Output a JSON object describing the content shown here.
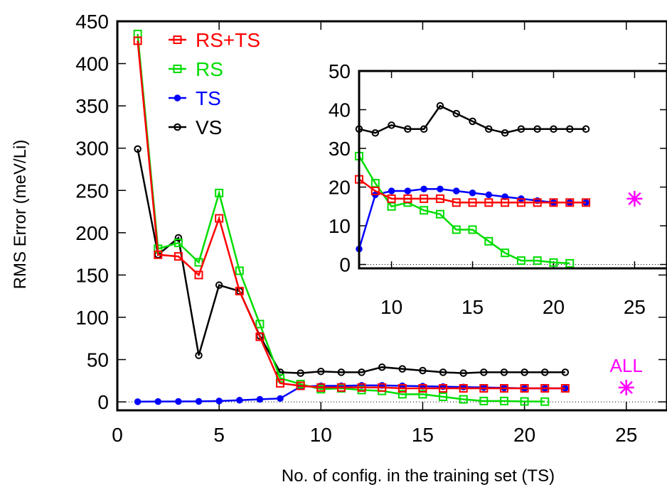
{
  "chart_data": [
    {
      "type": "line",
      "xlabel": "No. of config. in the training set (TS)",
      "ylabel": "RMS Error (meV/Li)",
      "xlim": [
        0,
        27
      ],
      "ylim": [
        -10,
        450
      ],
      "xticks": [
        0,
        5,
        10,
        15,
        20,
        25
      ],
      "yticks": [
        0,
        50,
        100,
        150,
        200,
        250,
        300,
        350,
        400,
        450
      ],
      "legend_position": "top-left",
      "series": [
        {
          "name": "RS+TS",
          "color": "#ff0000",
          "marker": "square",
          "x": [
            1,
            2,
            3,
            4,
            5,
            6,
            7,
            8,
            9,
            10,
            11,
            12,
            13,
            14,
            15,
            16,
            17,
            18,
            19,
            20,
            21,
            22
          ],
          "y": [
            427,
            174,
            172,
            150,
            217,
            131,
            77,
            22,
            19,
            17,
            17,
            17,
            17,
            16,
            16,
            16,
            16,
            16,
            16,
            16,
            16,
            16
          ]
        },
        {
          "name": "RS",
          "color": "#00dd00",
          "marker": "square",
          "x": [
            1,
            2,
            3,
            4,
            5,
            6,
            7,
            8,
            9,
            10,
            11,
            12,
            13,
            14,
            15,
            16,
            17,
            18,
            19,
            20,
            21
          ],
          "y": [
            435,
            181,
            188,
            165,
            247,
            155,
            92,
            28,
            21,
            15,
            16,
            14,
            13,
            9,
            9,
            6,
            3,
            1,
            1,
            0.5,
            0.3
          ]
        },
        {
          "name": "TS",
          "color": "#0000ff",
          "marker": "circle",
          "x": [
            1,
            2,
            3,
            4,
            5,
            6,
            7,
            8,
            9,
            10,
            11,
            12,
            13,
            14,
            15,
            16,
            17,
            18,
            19,
            20,
            21,
            22
          ],
          "y": [
            0.2,
            0.4,
            0.5,
            0.6,
            1,
            2,
            3,
            4,
            18,
            19,
            19,
            19.5,
            19.5,
            19,
            18.5,
            18,
            17.5,
            17,
            16.5,
            16,
            16,
            16
          ]
        },
        {
          "name": "VS",
          "color": "#000000",
          "marker": "open-circle",
          "x": [
            1,
            2,
            3,
            4,
            5,
            6,
            7,
            8,
            9,
            10,
            11,
            12,
            13,
            14,
            15,
            16,
            17,
            18,
            19,
            20,
            21,
            22
          ],
          "y": [
            299,
            174,
            194,
            55,
            138,
            131,
            78,
            35,
            34,
            36,
            35,
            35,
            41,
            39,
            37,
            35,
            34,
            35,
            35,
            35,
            35,
            35
          ]
        },
        {
          "name": "ALL",
          "color": "#ff00ff",
          "marker": "star",
          "x": [
            25
          ],
          "y": [
            17
          ]
        }
      ],
      "annotations": [
        {
          "text": "ALL",
          "color": "#ff00ff"
        }
      ]
    },
    {
      "type": "line",
      "role": "inset",
      "xlim": [
        8,
        27
      ],
      "ylim": [
        -1,
        50
      ],
      "xticks": [
        10,
        15,
        20,
        25
      ],
      "yticks": [
        0,
        10,
        20,
        30,
        40,
        50
      ],
      "series": [
        {
          "name": "RS+TS",
          "color": "#ff0000",
          "marker": "square",
          "x": [
            8,
            9,
            10,
            11,
            12,
            13,
            14,
            15,
            16,
            17,
            18,
            19,
            20,
            21,
            22
          ],
          "y": [
            22,
            19,
            17,
            17,
            17,
            17,
            16,
            16,
            16,
            16,
            16,
            16,
            16,
            16,
            16
          ]
        },
        {
          "name": "RS",
          "color": "#00dd00",
          "marker": "square",
          "x": [
            8,
            9,
            10,
            11,
            12,
            13,
            14,
            15,
            16,
            17,
            18,
            19,
            20,
            21
          ],
          "y": [
            28,
            21,
            15,
            16,
            14,
            13,
            9,
            9,
            6,
            3,
            1,
            1,
            0.5,
            0.3
          ]
        },
        {
          "name": "TS",
          "color": "#0000ff",
          "marker": "circle",
          "x": [
            8,
            9,
            10,
            11,
            12,
            13,
            14,
            15,
            16,
            17,
            18,
            19,
            20,
            21,
            22
          ],
          "y": [
            4,
            18,
            19,
            19,
            19.5,
            19.5,
            19,
            18.5,
            18,
            17.5,
            17,
            16.5,
            16,
            16,
            16
          ]
        },
        {
          "name": "VS",
          "color": "#000000",
          "marker": "open-circle",
          "x": [
            8,
            9,
            10,
            11,
            12,
            13,
            14,
            15,
            16,
            17,
            18,
            19,
            20,
            21,
            22
          ],
          "y": [
            35,
            34,
            36,
            35,
            35,
            41,
            39,
            37,
            35,
            34,
            35,
            35,
            35,
            35,
            35
          ]
        },
        {
          "name": "ALL",
          "color": "#ff00ff",
          "marker": "star",
          "x": [
            25
          ],
          "y": [
            17
          ]
        }
      ]
    }
  ]
}
